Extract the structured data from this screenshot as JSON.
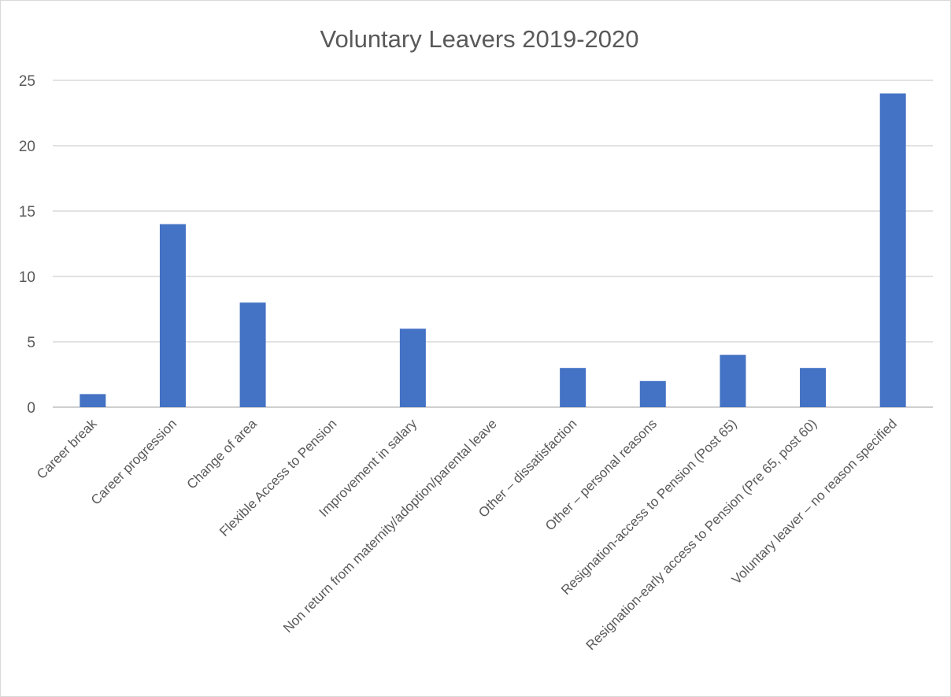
{
  "chart_data": {
    "type": "bar",
    "title": "Voluntary Leavers 2019-2020",
    "xlabel": "",
    "ylabel": "",
    "ylim": [
      0,
      25
    ],
    "yticks": [
      0,
      5,
      10,
      15,
      20,
      25
    ],
    "grid": true,
    "legend": "none",
    "colors": {
      "bar": "#4472C4"
    },
    "categories": [
      "Career break",
      "Career progression",
      "Change of area",
      "Flexible Access to Pension",
      "Improvement in salary",
      "Non return from maternity/adoption/parental leave",
      "Other – dissatisfaction",
      "Other – personal reasons",
      "Resignation-access to Pension (Post 65)",
      "Resignation-early access to Pension (Pre 65, post 60)",
      "Voluntary leaver – no reason specified"
    ],
    "values": [
      1,
      14,
      8,
      0,
      6,
      0,
      3,
      2,
      4,
      3,
      24
    ]
  }
}
